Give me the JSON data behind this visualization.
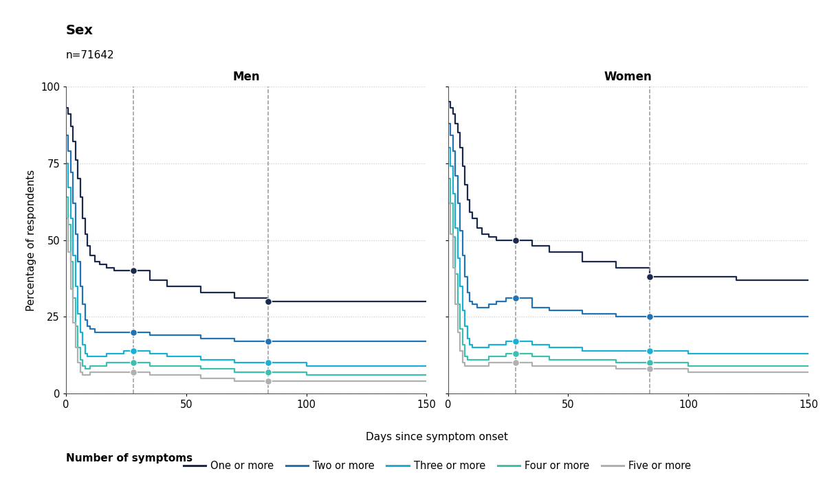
{
  "title": "Sex",
  "subtitle": "n=71642",
  "panels": [
    "Men",
    "Women"
  ],
  "xlabel": "Days since symptom onset",
  "ylabel": "Percentage of respondents",
  "xlim": [
    0,
    150
  ],
  "ylim": [
    0,
    100
  ],
  "xticks": [
    0,
    50,
    100,
    150
  ],
  "yticks": [
    0,
    25,
    50,
    75,
    100
  ],
  "vlines": [
    28,
    84
  ],
  "colors": {
    "one_or_more": "#1b2a4a",
    "two_or_more": "#2272b4",
    "three_or_more": "#1ab0d5",
    "four_or_more": "#3dbfb0",
    "five_or_more": "#b0b0b0"
  },
  "legend_labels": [
    "One or more",
    "Two or more",
    "Three or more",
    "Four or more",
    "Five or more"
  ],
  "men": {
    "one_or_more": {
      "x": [
        0,
        1,
        2,
        3,
        4,
        5,
        6,
        7,
        8,
        9,
        10,
        12,
        14,
        17,
        20,
        24,
        28,
        35,
        42,
        56,
        70,
        84,
        100,
        120,
        150
      ],
      "y": [
        93,
        91,
        87,
        82,
        76,
        70,
        64,
        57,
        52,
        48,
        45,
        43,
        42,
        41,
        40,
        40,
        40,
        37,
        35,
        33,
        31,
        30,
        30,
        30,
        30
      ]
    },
    "two_or_more": {
      "x": [
        0,
        1,
        2,
        3,
        4,
        5,
        6,
        7,
        8,
        9,
        10,
        12,
        14,
        17,
        20,
        24,
        28,
        35,
        42,
        56,
        70,
        84,
        100,
        120,
        150
      ],
      "y": [
        84,
        79,
        72,
        62,
        52,
        43,
        35,
        29,
        24,
        22,
        21,
        20,
        20,
        20,
        20,
        20,
        20,
        19,
        19,
        18,
        17,
        17,
        17,
        17,
        17
      ]
    },
    "three_or_more": {
      "x": [
        0,
        1,
        2,
        3,
        4,
        5,
        6,
        7,
        8,
        9,
        10,
        12,
        14,
        17,
        20,
        24,
        28,
        35,
        42,
        56,
        70,
        84,
        100,
        120,
        150
      ],
      "y": [
        75,
        67,
        57,
        45,
        35,
        26,
        20,
        16,
        13,
        12,
        12,
        12,
        12,
        13,
        13,
        14,
        14,
        13,
        12,
        11,
        10,
        10,
        9,
        9,
        9
      ]
    },
    "four_or_more": {
      "x": [
        0,
        1,
        2,
        3,
        4,
        5,
        6,
        7,
        8,
        9,
        10,
        12,
        14,
        17,
        20,
        24,
        28,
        35,
        42,
        56,
        70,
        84,
        100,
        120,
        150
      ],
      "y": [
        64,
        55,
        43,
        31,
        22,
        15,
        11,
        9,
        8,
        8,
        9,
        9,
        9,
        10,
        10,
        10,
        10,
        9,
        9,
        8,
        7,
        7,
        6,
        6,
        6
      ]
    },
    "five_or_more": {
      "x": [
        0,
        1,
        2,
        3,
        4,
        5,
        6,
        7,
        8,
        9,
        10,
        12,
        14,
        17,
        20,
        24,
        28,
        35,
        42,
        56,
        70,
        84,
        100,
        120,
        150
      ],
      "y": [
        57,
        46,
        34,
        23,
        15,
        10,
        7,
        6,
        6,
        6,
        7,
        7,
        7,
        7,
        7,
        7,
        7,
        6,
        6,
        5,
        4,
        4,
        4,
        4,
        4
      ]
    }
  },
  "women": {
    "one_or_more": {
      "x": [
        0,
        1,
        2,
        3,
        4,
        5,
        6,
        7,
        8,
        9,
        10,
        12,
        14,
        17,
        20,
        24,
        28,
        35,
        42,
        56,
        70,
        84,
        100,
        120,
        150
      ],
      "y": [
        95,
        93,
        91,
        88,
        85,
        80,
        74,
        68,
        63,
        59,
        57,
        54,
        52,
        51,
        50,
        50,
        50,
        48,
        46,
        43,
        41,
        38,
        38,
        37,
        37
      ]
    },
    "two_or_more": {
      "x": [
        0,
        1,
        2,
        3,
        4,
        5,
        6,
        7,
        8,
        9,
        10,
        12,
        14,
        17,
        20,
        24,
        28,
        35,
        42,
        56,
        70,
        84,
        100,
        120,
        150
      ],
      "y": [
        88,
        84,
        79,
        71,
        62,
        53,
        45,
        38,
        33,
        30,
        29,
        28,
        28,
        29,
        30,
        31,
        31,
        28,
        27,
        26,
        25,
        25,
        25,
        25,
        25
      ]
    },
    "three_or_more": {
      "x": [
        0,
        1,
        2,
        3,
        4,
        5,
        6,
        7,
        8,
        9,
        10,
        12,
        14,
        17,
        20,
        24,
        28,
        35,
        42,
        56,
        70,
        84,
        100,
        120,
        150
      ],
      "y": [
        80,
        74,
        65,
        54,
        44,
        35,
        27,
        22,
        18,
        16,
        15,
        15,
        15,
        16,
        16,
        17,
        17,
        16,
        15,
        14,
        14,
        14,
        13,
        13,
        13
      ]
    },
    "four_or_more": {
      "x": [
        0,
        1,
        2,
        3,
        4,
        5,
        6,
        7,
        8,
        9,
        10,
        12,
        14,
        17,
        20,
        24,
        28,
        35,
        42,
        56,
        70,
        84,
        100,
        120,
        150
      ],
      "y": [
        70,
        62,
        51,
        39,
        29,
        21,
        16,
        12,
        11,
        11,
        11,
        11,
        11,
        12,
        12,
        13,
        13,
        12,
        11,
        11,
        10,
        10,
        9,
        9,
        9
      ]
    },
    "five_or_more": {
      "x": [
        0,
        1,
        2,
        3,
        4,
        5,
        6,
        7,
        8,
        9,
        10,
        12,
        14,
        17,
        20,
        24,
        28,
        35,
        42,
        56,
        70,
        84,
        100,
        120,
        150
      ],
      "y": [
        62,
        52,
        41,
        29,
        20,
        14,
        10,
        9,
        9,
        9,
        9,
        9,
        9,
        10,
        10,
        10,
        10,
        9,
        9,
        9,
        8,
        8,
        7,
        7,
        7
      ]
    }
  },
  "markers_28": {
    "men": {
      "one_or_more": 40,
      "two_or_more": 20,
      "three_or_more": 14,
      "four_or_more": 10,
      "five_or_more": 7
    },
    "women": {
      "one_or_more": 50,
      "two_or_more": 31,
      "three_or_more": 17,
      "four_or_more": 13,
      "five_or_more": 10
    }
  },
  "markers_84": {
    "men": {
      "one_or_more": 30,
      "two_or_more": 17,
      "three_or_more": 10,
      "four_or_more": 7,
      "five_or_more": 4
    },
    "women": {
      "one_or_more": 38,
      "two_or_more": 25,
      "three_or_more": 14,
      "four_or_more": 10,
      "five_or_more": 8
    }
  }
}
